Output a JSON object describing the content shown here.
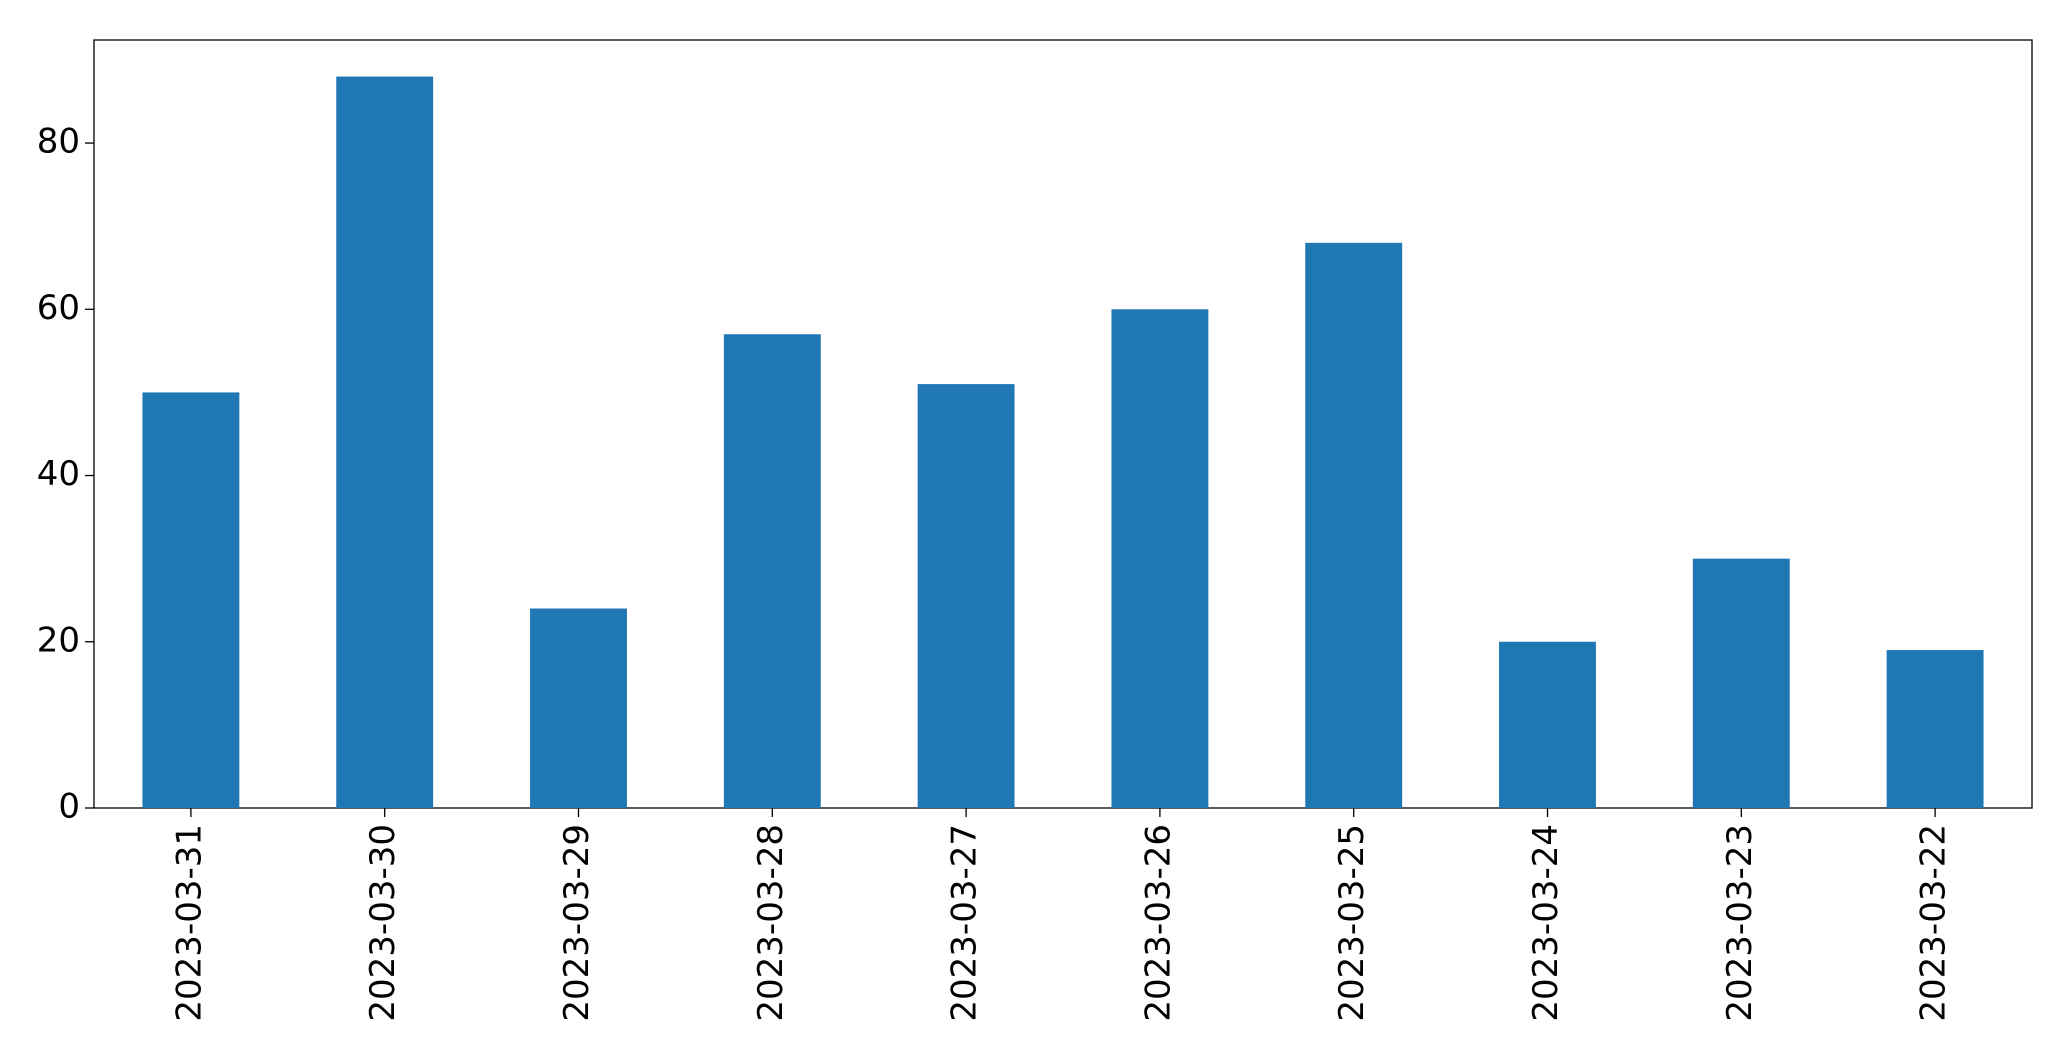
{
  "chart_data": {
    "type": "bar",
    "categories": [
      "2023-03-31",
      "2023-03-30",
      "2023-03-29",
      "2023-03-28",
      "2023-03-27",
      "2023-03-26",
      "2023-03-25",
      "2023-03-24",
      "2023-03-23",
      "2023-03-22"
    ],
    "values": [
      50,
      88,
      24,
      57,
      51,
      60,
      68,
      20,
      30,
      19
    ],
    "color": "#1f77b4",
    "ylim": [
      0,
      92.4
    ],
    "yticks": [
      0,
      20,
      40,
      60,
      80
    ],
    "grid": false
  }
}
